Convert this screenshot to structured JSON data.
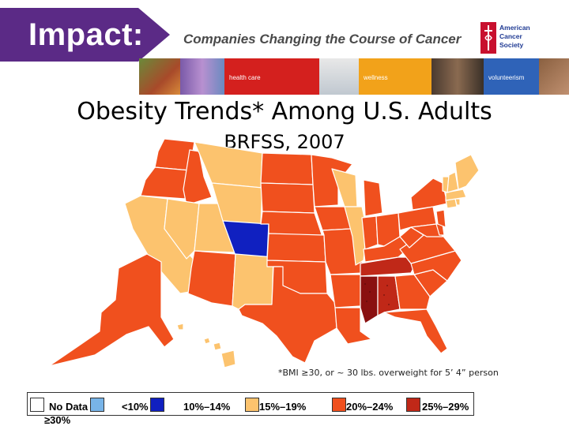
{
  "header": {
    "brand": "Impact:",
    "tagline": "Companies Changing the Course of Cancer",
    "logo_lines": [
      "American",
      "Cancer",
      "Society"
    ],
    "photo_labels": [
      "health care",
      "wellness",
      "volunteerism"
    ]
  },
  "map": {
    "title": "Obesity Trends* Among U.S. Adults",
    "subtitle": "BRFSS, 2007",
    "footnote": "*BMI ≥30, or ~ 30 lbs. overweight for 5’ 4” person",
    "colors": {
      "no_data": "#ffffff",
      "lt10": "#78b4e8",
      "10_14": "#1020c0",
      "15_19": "#fcc36e",
      "20_24": "#f0501e",
      "25_29": "#c02818",
      "ge30": "#8a1010"
    },
    "legend": [
      {
        "label": "No Data",
        "color": "#ffffff"
      },
      {
        "label": "<10%",
        "color": "#78b4e8"
      },
      {
        "label": "10%–14%",
        "color": "#1020c0"
      },
      {
        "label": "15%–19%",
        "color": "#fcc36e"
      },
      {
        "label": "20%–24%",
        "color": "#f0501e"
      },
      {
        "label": "25%–29%",
        "color": "#c02818"
      },
      {
        "label": "≥30%",
        "color": "#8a1010"
      }
    ]
  }
}
